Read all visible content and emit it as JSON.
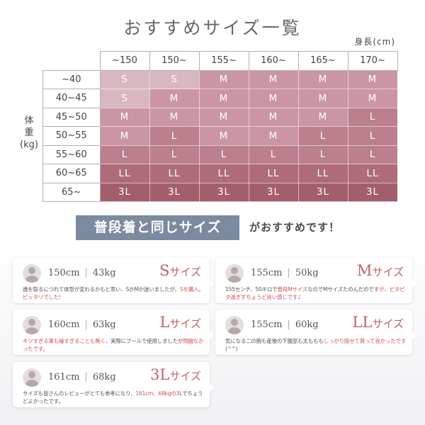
{
  "title": "おすすめサイズ一覧",
  "unit": "身長(cm)",
  "weight_label": {
    "line1": "体",
    "line2": "重",
    "line3": "(kg)"
  },
  "table": {
    "height_headers": [
      "~150",
      "150~",
      "155~",
      "160~",
      "165~",
      "170~"
    ],
    "rows": [
      {
        "weight": "~40",
        "sizes": [
          "S",
          "S",
          "M",
          "M",
          "M",
          "M"
        ]
      },
      {
        "weight": "40~45",
        "sizes": [
          "S",
          "M",
          "M",
          "M",
          "M",
          "M"
        ]
      },
      {
        "weight": "45~50",
        "sizes": [
          "M",
          "M",
          "M",
          "M",
          "M",
          "L"
        ]
      },
      {
        "weight": "50~55",
        "sizes": [
          "M",
          "L",
          "M",
          "M",
          "L",
          "L"
        ]
      },
      {
        "weight": "55~60",
        "sizes": [
          "L",
          "L",
          "L",
          "L",
          "L",
          "L"
        ]
      },
      {
        "weight": "60~65",
        "sizes": [
          "LL",
          "LL",
          "LL",
          "LL",
          "LL",
          "LL"
        ]
      },
      {
        "weight": "65~",
        "sizes": [
          "3L",
          "3L",
          "3L",
          "3L",
          "3L",
          "3L"
        ]
      }
    ],
    "colors": {
      "S": "#d9b7c0",
      "M": "#cb96a3",
      "L": "#bb7f8d",
      "LL": "#ae6c7a",
      "3L": "#a35e6c"
    }
  },
  "banner": {
    "highlight": "普段着と同じサイズ",
    "rest": "がおすすめです！"
  },
  "reviews": [
    {
      "height": "150cm",
      "weight": "43kg",
      "size_big": "S",
      "size_suffix": "サイズ",
      "comment": [
        {
          "t": "歳を取るにつれて体型が変わるかもと思い、SかMか迷いましたが、"
        },
        {
          "t": "Sを購入。ピッタリでした!",
          "hl": true
        }
      ]
    },
    {
      "height": "155cm",
      "weight": "50kg",
      "size_big": "M",
      "size_suffix": "サイズ",
      "comment": [
        {
          "t": "155センチ、50キロで"
        },
        {
          "t": "普段Mサイズ",
          "hl": true
        },
        {
          "t": "なのでMサイズたのんだのです"
        },
        {
          "t": "が、ピタピタ過ぎずちょうど良い感じです♪",
          "hl": true
        }
      ]
    },
    {
      "height": "160cm",
      "weight": "63kg",
      "size_big": "L",
      "size_suffix": "サイズ",
      "comment": [
        {
          "t": "キツすぎる事も緩すぎることも無く",
          "hl": true
        },
        {
          "t": "、実際にプールで使用しましたが"
        },
        {
          "t": "問題なかったです。",
          "hl": true
        }
      ]
    },
    {
      "height": "155cm",
      "weight": "60kg",
      "size_big": "LL",
      "size_suffix": "サイズ",
      "comment": [
        {
          "t": "気になる二の腕も産後の下腹部も太ももも"
        },
        {
          "t": "しっかり隠せて買って良かったです",
          "hl": true
        },
        {
          "t": "(^^)"
        }
      ]
    },
    {
      "height": "161cm",
      "weight": "68kg",
      "size_big": "3L",
      "size_suffix": "サイズ",
      "comment": [
        {
          "t": "サイズも皆さんのレビューがとても参考になり、"
        },
        {
          "t": "161cm、68kgの3L",
          "hl": true
        },
        {
          "t": "でちょうどよかったです。"
        }
      ]
    }
  ]
}
